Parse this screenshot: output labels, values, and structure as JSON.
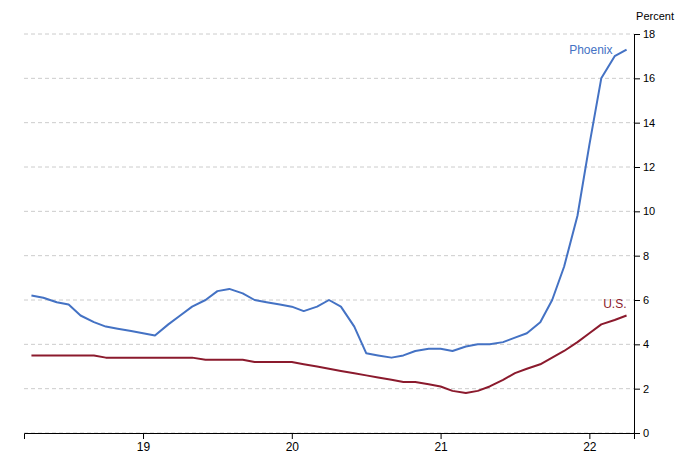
{
  "chart_data": {
    "type": "line",
    "y_label": "Percent",
    "x": [
      2018.25,
      2018.33,
      2018.42,
      2018.5,
      2018.58,
      2018.67,
      2018.75,
      2018.83,
      2018.92,
      2019.0,
      2019.08,
      2019.17,
      2019.25,
      2019.33,
      2019.42,
      2019.5,
      2019.58,
      2019.67,
      2019.75,
      2019.83,
      2019.92,
      2020.0,
      2020.08,
      2020.17,
      2020.25,
      2020.33,
      2020.42,
      2020.5,
      2020.58,
      2020.67,
      2020.75,
      2020.83,
      2020.92,
      2021.0,
      2021.08,
      2021.17,
      2021.25,
      2021.33,
      2021.42,
      2021.5,
      2021.58,
      2021.67,
      2021.75,
      2021.83,
      2021.92,
      2022.0,
      2022.08,
      2022.17,
      2022.25
    ],
    "series": [
      {
        "name": "Phoenix",
        "color": "#4472C4",
        "values": [
          6.2,
          6.1,
          5.9,
          5.8,
          5.3,
          5.0,
          4.8,
          4.7,
          4.6,
          4.5,
          4.4,
          4.9,
          5.3,
          5.7,
          6.0,
          6.4,
          6.5,
          6.3,
          6.0,
          5.9,
          5.8,
          5.7,
          5.5,
          5.7,
          6.0,
          5.7,
          4.8,
          3.6,
          3.5,
          3.4,
          3.5,
          3.7,
          3.8,
          3.8,
          3.7,
          3.9,
          4.0,
          4.0,
          4.1,
          4.3,
          4.5,
          5.0,
          6.0,
          7.5,
          9.8,
          13.0,
          16.0,
          17.0,
          17.3
        ]
      },
      {
        "name": "U.S.",
        "color": "#8B1A2D",
        "values": [
          3.5,
          3.5,
          3.5,
          3.5,
          3.5,
          3.5,
          3.4,
          3.4,
          3.4,
          3.4,
          3.4,
          3.4,
          3.4,
          3.4,
          3.3,
          3.3,
          3.3,
          3.3,
          3.2,
          3.2,
          3.2,
          3.2,
          3.1,
          3.0,
          2.9,
          2.8,
          2.7,
          2.6,
          2.5,
          2.4,
          2.3,
          2.3,
          2.2,
          2.1,
          1.9,
          1.8,
          1.9,
          2.1,
          2.4,
          2.7,
          2.9,
          3.1,
          3.4,
          3.7,
          4.1,
          4.5,
          4.9,
          5.1,
          5.3
        ]
      }
    ],
    "xlim": [
      2018.2,
      2022.3
    ],
    "xticks": [
      {
        "value": 2019.0,
        "label": "19"
      },
      {
        "value": 2020.0,
        "label": "20"
      },
      {
        "value": 2021.0,
        "label": "21"
      },
      {
        "value": 2022.0,
        "label": "22"
      }
    ],
    "ylim": [
      0,
      18
    ],
    "yticks": [
      0,
      2,
      4,
      6,
      8,
      10,
      12,
      14,
      16,
      18
    ],
    "grid": true
  }
}
